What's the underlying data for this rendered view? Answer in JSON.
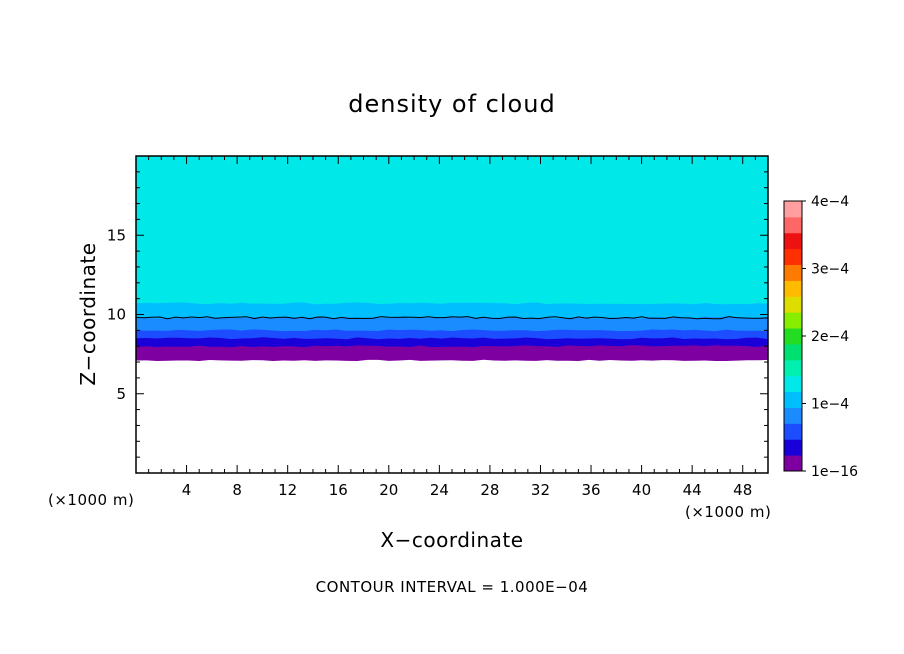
{
  "chart_data": {
    "type": "heatmap",
    "title": "density of cloud",
    "xlabel": "X−coordinate",
    "ylabel": "Z−coordinate",
    "x_unit_label": "(×1000 m)",
    "y_unit_label": "(×1000 m)",
    "xlim": [
      0,
      50
    ],
    "ylim": [
      0,
      20
    ],
    "x_ticks": [
      4,
      8,
      12,
      16,
      20,
      24,
      28,
      32,
      36,
      40,
      44,
      48
    ],
    "x_tick_labels": [
      "4",
      "8",
      "12",
      "16",
      "20",
      "24",
      "28",
      "32",
      "36",
      "40",
      "44",
      "48"
    ],
    "y_ticks": [
      5,
      10,
      15
    ],
    "y_tick_labels": [
      "5",
      "10",
      "15"
    ],
    "footer": "CONTOUR INTERVAL = 1.000E−04",
    "colorbar": {
      "min": 0,
      "max": 0.0004,
      "ticks": [
        0,
        0.0001,
        0.0002,
        0.0003,
        0.0004
      ],
      "tick_labels": [
        "1e−16",
        "1e−4",
        "2e−4",
        "3e−4",
        "4e−4"
      ],
      "colors": [
        "#7f00a0",
        "#1a00d8",
        "#1c4dff",
        "#1a8cff",
        "#00bfff",
        "#00e8e8",
        "#00f0b0",
        "#00e070",
        "#22dd22",
        "#88ee00",
        "#dddd00",
        "#ffbb00",
        "#ff7a00",
        "#ff3000",
        "#ee1111",
        "#ff6666",
        "#ff9f9f"
      ]
    },
    "contour_line_level": 0.0001,
    "contour_line_z": 9.8,
    "cloud_base_z": 7.1,
    "cloud_top_z": 20,
    "vertical_profile": {
      "z": [
        7.1,
        7.5,
        8.0,
        8.5,
        9.0,
        9.5,
        9.8,
        10.2,
        10.7,
        11.2,
        11.8,
        12.5,
        13.2,
        16.5,
        17.5,
        18.5,
        19.5
      ],
      "density": [
        5e-06,
        2e-05,
        4e-05,
        6e-05,
        8e-05,
        9e-05,
        0.0001,
        0.00011,
        0.00012,
        0.000125,
        0.00013,
        0.000135,
        0.00014,
        0.00014,
        0.000135,
        0.00013,
        0.000125
      ]
    }
  }
}
